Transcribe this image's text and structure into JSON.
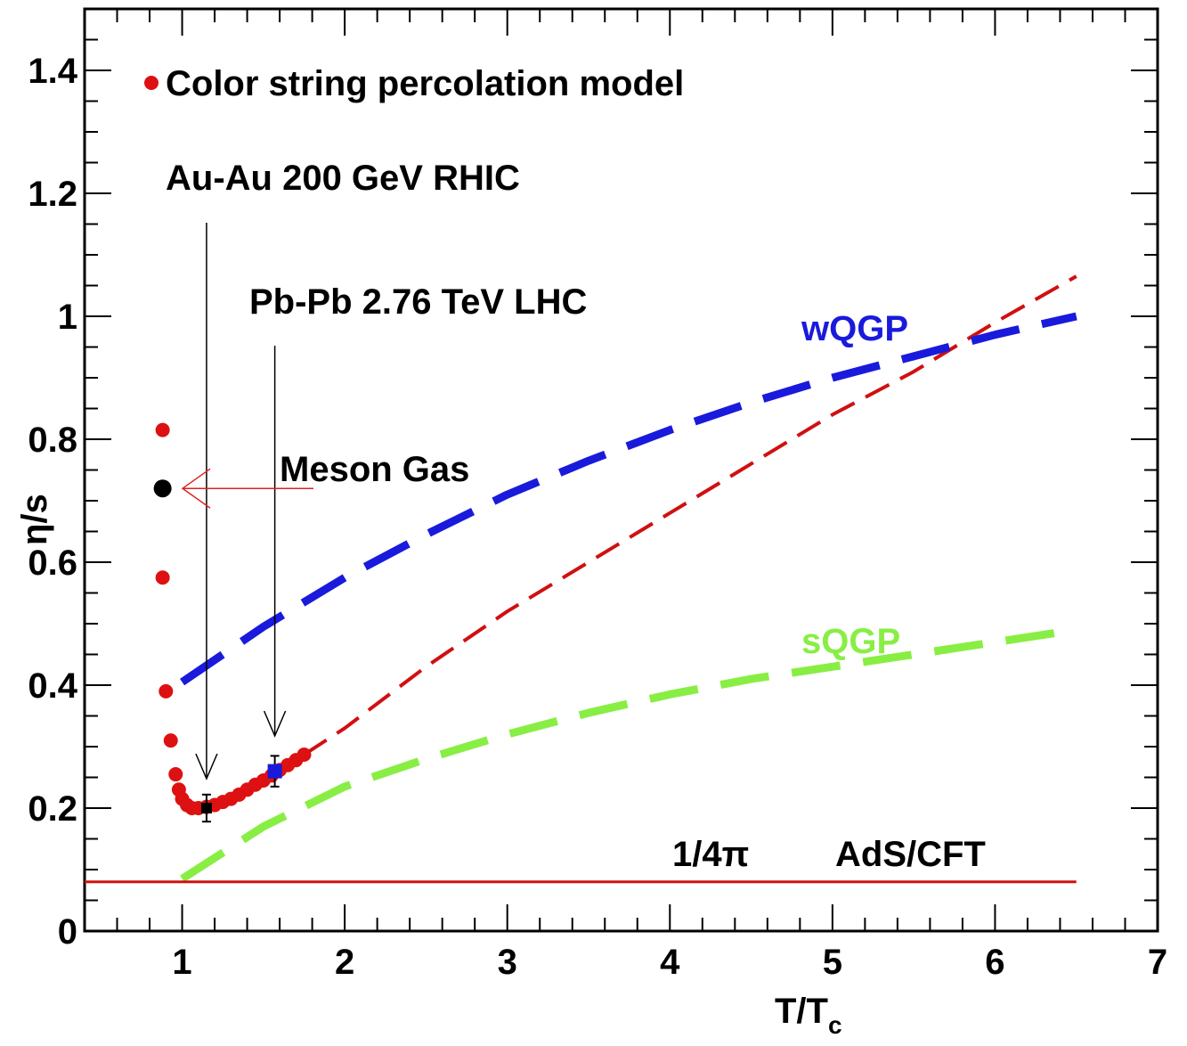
{
  "chart_data": {
    "type": "scatter",
    "xlabel": "T/T",
    "xlabel_sub": "c",
    "ylabel": "η/s",
    "xlim": [
      0.4,
      7
    ],
    "ylim": [
      0,
      1.5
    ],
    "x_ticks": [
      "1",
      "2",
      "3",
      "4",
      "5",
      "6",
      "7"
    ],
    "y_ticks": [
      "0",
      "0.2",
      "0.4",
      "0.6",
      "0.8",
      "1",
      "1.2",
      "1.4"
    ],
    "legend": {
      "label": "Color string percolation model",
      "color": "#dd1111",
      "placement": "top-left"
    },
    "annotations": {
      "rhic": "Au-Au 200 GeV  RHIC",
      "lhc": "Pb-Pb 2.76 TeV  LHC",
      "meson": "Meson Gas",
      "wqgp": "wQGP",
      "sqgp": "sQGP",
      "quarter_pi": "1/4π",
      "adscft": "AdS/CFT"
    },
    "colors": {
      "red": "#d01010",
      "blue": "#1a1adc",
      "green": "#88ee44",
      "black": "#000000"
    },
    "series": [
      {
        "name": "Color string percolation model",
        "kind": "points",
        "color": "#dd1111",
        "x": [
          0.88,
          0.88,
          0.88,
          0.9,
          0.93,
          0.96,
          0.98,
          1.0,
          1.03,
          1.06,
          1.1,
          1.15,
          1.2,
          1.25,
          1.3,
          1.35,
          1.4,
          1.45,
          1.5,
          1.55,
          1.6,
          1.65,
          1.7,
          1.75
        ],
        "y": [
          0.815,
          0.575,
          0.72,
          0.39,
          0.31,
          0.255,
          0.23,
          0.215,
          0.205,
          0.2,
          0.2,
          0.202,
          0.205,
          0.21,
          0.215,
          0.222,
          0.23,
          0.238,
          0.245,
          0.253,
          0.262,
          0.27,
          0.278,
          0.287
        ]
      },
      {
        "name": "Au-Au 200 GeV  RHIC",
        "kind": "point",
        "color": "#000000",
        "x": [
          1.15
        ],
        "y": [
          0.2
        ],
        "yerr": [
          0.022
        ]
      },
      {
        "name": "Pb-Pb 2.76 TeV  LHC",
        "kind": "point",
        "color": "#1a1adc",
        "x": [
          1.57
        ],
        "y": [
          0.26
        ],
        "yerr": [
          0.025
        ]
      },
      {
        "name": "Meson Gas",
        "kind": "point",
        "color": "#000000",
        "x": [
          0.88
        ],
        "y": [
          0.72
        ]
      },
      {
        "name": "",
        "kind": "line",
        "color": "#d01010",
        "x": [
          1.75,
          2.0,
          2.5,
          3.0,
          3.5,
          4.0,
          4.5,
          5.0,
          5.5,
          6.0,
          6.5
        ],
        "y": [
          0.287,
          0.33,
          0.43,
          0.52,
          0.6,
          0.68,
          0.76,
          0.84,
          0.91,
          0.99,
          1.065
        ]
      },
      {
        "name": "wQGP",
        "kind": "line",
        "color": "#1a1adc",
        "x": [
          1.0,
          1.5,
          2.0,
          2.5,
          3.0,
          3.5,
          4.0,
          4.5,
          5.0,
          5.5,
          6.0,
          6.5
        ],
        "y": [
          0.405,
          0.495,
          0.575,
          0.645,
          0.71,
          0.765,
          0.815,
          0.86,
          0.9,
          0.935,
          0.97,
          1.0
        ]
      },
      {
        "name": "sQGP",
        "kind": "line",
        "color": "#88ee44",
        "x": [
          1.0,
          1.5,
          2.0,
          2.5,
          3.0,
          3.5,
          4.0,
          4.5,
          5.0,
          5.5,
          6.0,
          6.5
        ],
        "y": [
          0.085,
          0.17,
          0.235,
          0.28,
          0.32,
          0.355,
          0.385,
          0.41,
          0.43,
          0.45,
          0.47,
          0.49
        ]
      },
      {
        "name": "1/4π",
        "kind": "hline",
        "color": "#d01010",
        "x": [
          0.4,
          6.5
        ],
        "y": [
          0.08,
          0.08
        ]
      }
    ]
  }
}
